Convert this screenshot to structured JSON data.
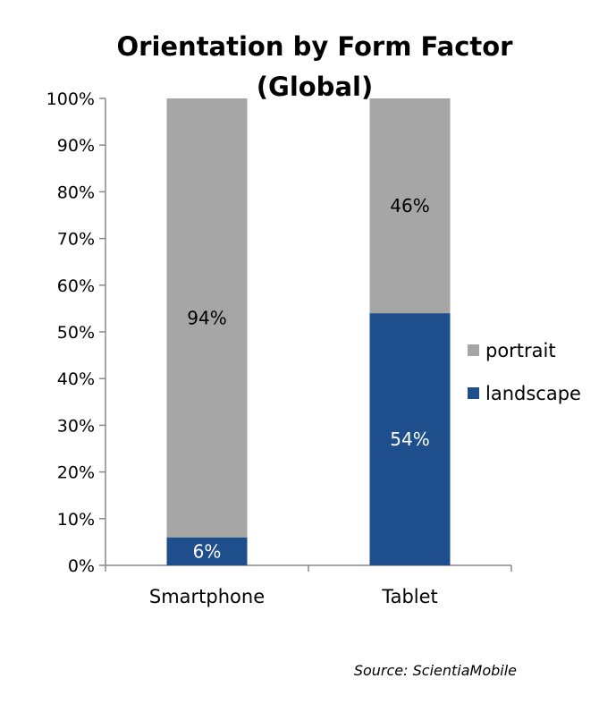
{
  "chart_data": {
    "type": "bar",
    "stacked": true,
    "title_lines": [
      "Orientation by Form Factor",
      "(Global)"
    ],
    "categories": [
      "Smartphone",
      "Tablet"
    ],
    "series": [
      {
        "name": "landscape",
        "values": [
          6,
          54
        ],
        "labels": [
          "6%",
          "54%"
        ],
        "color": "#1f4e8c",
        "label_color": "#ffffff"
      },
      {
        "name": "portrait",
        "values": [
          94,
          46
        ],
        "labels": [
          "94%",
          "46%"
        ],
        "color": "#a6a6a6",
        "label_color": "#000000"
      }
    ],
    "ylim": [
      0,
      100
    ],
    "yticks": [
      0,
      10,
      20,
      30,
      40,
      50,
      60,
      70,
      80,
      90,
      100
    ],
    "ytick_labels": [
      "0%",
      "10%",
      "20%",
      "30%",
      "40%",
      "50%",
      "60%",
      "70%",
      "80%",
      "90%",
      "100%"
    ],
    "legend": {
      "placement": "right",
      "entries": [
        "portrait",
        "landscape"
      ]
    },
    "grid": false
  },
  "source": "Source: ScientiaMobile"
}
